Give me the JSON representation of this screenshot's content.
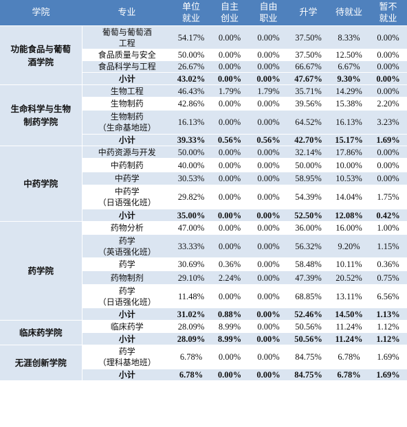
{
  "headers": [
    "学院",
    "专业",
    "单位\n就业",
    "自主\n创业",
    "自由\n职业",
    "升学",
    "待就业",
    "暂不\n就业"
  ],
  "rows": [
    {
      "college": "功能食品与葡萄\n酒学院",
      "major": "葡萄与葡萄酒\n工程",
      "v": [
        "54.17%",
        "0.00%",
        "0.00%",
        "37.50%",
        "8.33%",
        "0.00%"
      ]
    },
    {
      "major": "食品质量与安全",
      "v": [
        "50.00%",
        "0.00%",
        "0.00%",
        "37.50%",
        "12.50%",
        "0.00%"
      ]
    },
    {
      "major": "食品科学与工程",
      "v": [
        "26.67%",
        "0.00%",
        "0.00%",
        "66.67%",
        "6.67%",
        "0.00%"
      ]
    },
    {
      "sub": true,
      "major": "小计",
      "v": [
        "43.02%",
        "0.00%",
        "0.00%",
        "47.67%",
        "9.30%",
        "0.00%"
      ]
    },
    {
      "college": "生命科学与生物\n制药学院",
      "major": "生物工程",
      "v": [
        "46.43%",
        "1.79%",
        "1.79%",
        "35.71%",
        "14.29%",
        "0.00%"
      ]
    },
    {
      "major": "生物制药",
      "v": [
        "42.86%",
        "0.00%",
        "0.00%",
        "39.56%",
        "15.38%",
        "2.20%"
      ]
    },
    {
      "major": "生物制药\n（生命基地班）",
      "v": [
        "16.13%",
        "0.00%",
        "0.00%",
        "64.52%",
        "16.13%",
        "3.23%"
      ]
    },
    {
      "sub": true,
      "major": "小计",
      "v": [
        "39.33%",
        "0.56%",
        "0.56%",
        "42.70%",
        "15.17%",
        "1.69%"
      ]
    },
    {
      "college": "中药学院",
      "major": "中药资源与开发",
      "v": [
        "50.00%",
        "0.00%",
        "0.00%",
        "32.14%",
        "17.86%",
        "0.00%"
      ]
    },
    {
      "major": "中药制药",
      "v": [
        "40.00%",
        "0.00%",
        "0.00%",
        "50.00%",
        "10.00%",
        "0.00%"
      ]
    },
    {
      "major": "中药学",
      "v": [
        "30.53%",
        "0.00%",
        "0.00%",
        "58.95%",
        "10.53%",
        "0.00%"
      ]
    },
    {
      "major": "中药学\n（日语强化班）",
      "v": [
        "29.82%",
        "0.00%",
        "0.00%",
        "54.39%",
        "14.04%",
        "1.75%"
      ]
    },
    {
      "sub": true,
      "major": "小计",
      "v": [
        "35.00%",
        "0.00%",
        "0.00%",
        "52.50%",
        "12.08%",
        "0.42%"
      ]
    },
    {
      "college": "药学院",
      "major": "药物分析",
      "v": [
        "47.00%",
        "0.00%",
        "0.00%",
        "36.00%",
        "16.00%",
        "1.00%"
      ]
    },
    {
      "major": "药学\n（英语强化班）",
      "v": [
        "33.33%",
        "0.00%",
        "0.00%",
        "56.32%",
        "9.20%",
        "1.15%"
      ]
    },
    {
      "major": "药学",
      "v": [
        "30.69%",
        "0.36%",
        "0.00%",
        "58.48%",
        "10.11%",
        "0.36%"
      ]
    },
    {
      "major": "药物制剂",
      "v": [
        "29.10%",
        "2.24%",
        "0.00%",
        "47.39%",
        "20.52%",
        "0.75%"
      ]
    },
    {
      "major": "药学\n（日语强化班）",
      "v": [
        "11.48%",
        "0.00%",
        "0.00%",
        "68.85%",
        "13.11%",
        "6.56%"
      ]
    },
    {
      "sub": true,
      "major": "小计",
      "v": [
        "31.02%",
        "0.88%",
        "0.00%",
        "52.46%",
        "14.50%",
        "1.13%"
      ]
    },
    {
      "college": "临床药学院",
      "major": "临床药学",
      "v": [
        "28.09%",
        "8.99%",
        "0.00%",
        "50.56%",
        "11.24%",
        "1.12%"
      ]
    },
    {
      "sub": true,
      "major": "小计",
      "v": [
        "28.09%",
        "8.99%",
        "0.00%",
        "50.56%",
        "11.24%",
        "1.12%"
      ]
    },
    {
      "college": "无涯创新学院",
      "major": "药学\n（理科基地班）",
      "v": [
        "6.78%",
        "0.00%",
        "0.00%",
        "84.75%",
        "6.78%",
        "1.69%"
      ]
    },
    {
      "sub": true,
      "major": "小计",
      "v": [
        "6.78%",
        "0.00%",
        "0.00%",
        "84.75%",
        "6.78%",
        "1.69%"
      ]
    }
  ]
}
